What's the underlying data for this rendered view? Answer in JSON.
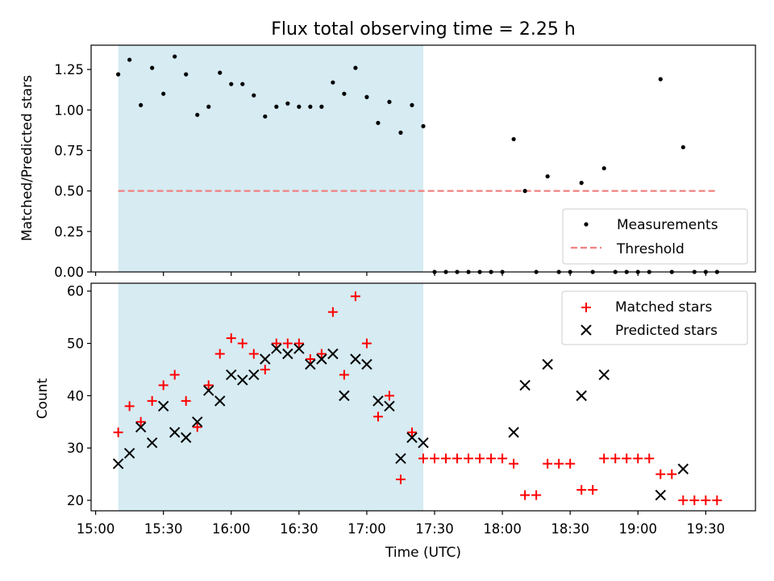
{
  "chart_data": [
    {
      "type": "scatter",
      "title": "Flux total observing time = 2.25 h",
      "xlabel": "",
      "ylabel": "Matched/Predicted stars",
      "xlim": [
        "14:58",
        "19:52"
      ],
      "ylim": [
        0,
        1.4
      ],
      "yticks": [
        "0.00",
        "0.25",
        "0.50",
        "0.75",
        "1.00",
        "1.25"
      ],
      "shaded_interval": [
        "15:10",
        "17:25"
      ],
      "legend_position": "lower right",
      "threshold": {
        "name": "Threshold",
        "value": 0.5,
        "x_range": [
          "15:10",
          "19:35"
        ],
        "color": "#f08080"
      },
      "series": [
        {
          "name": "Measurements",
          "marker": "dot",
          "color": "#000000",
          "x": [
            "15:10",
            "15:15",
            "15:20",
            "15:25",
            "15:30",
            "15:35",
            "15:40",
            "15:45",
            "15:50",
            "15:55",
            "16:00",
            "16:05",
            "16:10",
            "16:15",
            "16:20",
            "16:25",
            "16:30",
            "16:35",
            "16:40",
            "16:45",
            "16:50",
            "16:55",
            "17:00",
            "17:05",
            "17:10",
            "17:15",
            "17:20",
            "17:25",
            "17:30",
            "17:35",
            "17:40",
            "17:45",
            "17:50",
            "17:55",
            "18:00",
            "18:05",
            "18:10",
            "18:15",
            "18:20",
            "18:25",
            "18:30",
            "18:35",
            "18:40",
            "18:45",
            "18:50",
            "18:55",
            "19:00",
            "19:05",
            "19:10",
            "19:15",
            "19:20",
            "19:25",
            "19:30",
            "19:35"
          ],
          "y": [
            1.22,
            1.31,
            1.03,
            1.26,
            1.1,
            1.33,
            1.22,
            0.97,
            1.02,
            1.23,
            1.16,
            1.16,
            1.09,
            0.96,
            1.02,
            1.04,
            1.02,
            1.02,
            1.02,
            1.17,
            1.1,
            1.26,
            1.08,
            0.92,
            1.05,
            0.86,
            1.03,
            0.9,
            0,
            0,
            0,
            0,
            0,
            0,
            0,
            0.82,
            0.5,
            0,
            0.59,
            0,
            0,
            0.55,
            0,
            0.64,
            0,
            0,
            0,
            0,
            1.19,
            0,
            0.77,
            0,
            0,
            0
          ]
        }
      ]
    },
    {
      "type": "scatter",
      "xlabel": "Time (UTC)",
      "ylabel": "Count",
      "xlim": [
        "14:58",
        "19:52"
      ],
      "ylim": [
        18,
        61.5
      ],
      "yticks": [
        "20",
        "30",
        "40",
        "50",
        "60"
      ],
      "xticks": [
        "15:00",
        "15:30",
        "16:00",
        "16:30",
        "17:00",
        "17:30",
        "18:00",
        "18:30",
        "19:00",
        "19:30"
      ],
      "shaded_interval": [
        "15:10",
        "17:25"
      ],
      "legend_position": "upper right",
      "series": [
        {
          "name": "Matched stars",
          "marker": "plus",
          "color": "#ff0000",
          "x": [
            "15:10",
            "15:15",
            "15:20",
            "15:25",
            "15:30",
            "15:35",
            "15:40",
            "15:45",
            "15:50",
            "15:55",
            "16:00",
            "16:05",
            "16:10",
            "16:15",
            "16:20",
            "16:25",
            "16:30",
            "16:35",
            "16:40",
            "16:45",
            "16:50",
            "16:55",
            "17:00",
            "17:05",
            "17:10",
            "17:15",
            "17:20",
            "17:25",
            "17:30",
            "17:35",
            "17:40",
            "17:45",
            "17:50",
            "17:55",
            "18:00",
            "18:05",
            "18:10",
            "18:15",
            "18:20",
            "18:25",
            "18:30",
            "18:35",
            "18:40",
            "18:45",
            "18:50",
            "18:55",
            "19:00",
            "19:05",
            "19:10",
            "19:15",
            "19:20",
            "19:25",
            "19:30",
            "19:35"
          ],
          "y": [
            33,
            38,
            35,
            39,
            42,
            44,
            39,
            34,
            42,
            48,
            51,
            50,
            48,
            45,
            50,
            50,
            50,
            47,
            48,
            56,
            44,
            59,
            50,
            36,
            40,
            24,
            33,
            28,
            28,
            28,
            28,
            28,
            28,
            28,
            28,
            27,
            21,
            21,
            27,
            27,
            27,
            22,
            22,
            28,
            28,
            28,
            28,
            28,
            25,
            25,
            20,
            20,
            20,
            20
          ]
        },
        {
          "name": "Predicted stars",
          "marker": "x",
          "color": "#000000",
          "x": [
            "15:10",
            "15:15",
            "15:20",
            "15:25",
            "15:30",
            "15:35",
            "15:40",
            "15:45",
            "15:50",
            "15:55",
            "16:00",
            "16:05",
            "16:10",
            "16:15",
            "16:20",
            "16:25",
            "16:30",
            "16:35",
            "16:40",
            "16:45",
            "16:50",
            "16:55",
            "17:00",
            "17:05",
            "17:10",
            "17:15",
            "17:20",
            "17:25",
            "18:05",
            "18:10",
            "18:20",
            "18:35",
            "18:45",
            "19:10",
            "19:20"
          ],
          "y": [
            27,
            29,
            34,
            31,
            38,
            33,
            32,
            35,
            41,
            39,
            44,
            43,
            44,
            47,
            49,
            48,
            49,
            46,
            47,
            48,
            40,
            47,
            46,
            39,
            38,
            28,
            32,
            31,
            33,
            42,
            46,
            40,
            44,
            21,
            26
          ]
        }
      ]
    }
  ]
}
